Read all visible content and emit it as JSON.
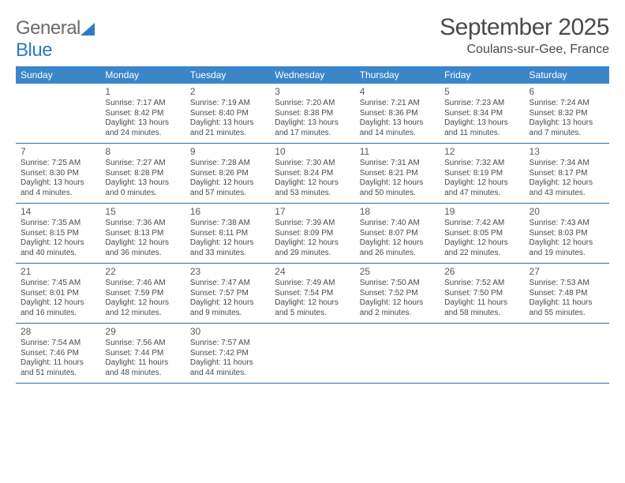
{
  "brand": {
    "text1": "General",
    "text2": "Blue"
  },
  "header": {
    "month_title": "September 2025",
    "location": "Coulans-sur-Gee, France"
  },
  "colors": {
    "header_bg": "#3a86c8",
    "rule": "#2f6fa8",
    "text": "#4a4a4a",
    "logo_gray": "#6b6b6b",
    "logo_blue": "#2f7abf"
  },
  "dow": [
    "Sunday",
    "Monday",
    "Tuesday",
    "Wednesday",
    "Thursday",
    "Friday",
    "Saturday"
  ],
  "weeks": [
    [
      null,
      {
        "d": "1",
        "sr": "Sunrise: 7:17 AM",
        "ss": "Sunset: 8:42 PM",
        "dl": "Daylight: 13 hours and 24 minutes."
      },
      {
        "d": "2",
        "sr": "Sunrise: 7:19 AM",
        "ss": "Sunset: 8:40 PM",
        "dl": "Daylight: 13 hours and 21 minutes."
      },
      {
        "d": "3",
        "sr": "Sunrise: 7:20 AM",
        "ss": "Sunset: 8:38 PM",
        "dl": "Daylight: 13 hours and 17 minutes."
      },
      {
        "d": "4",
        "sr": "Sunrise: 7:21 AM",
        "ss": "Sunset: 8:36 PM",
        "dl": "Daylight: 13 hours and 14 minutes."
      },
      {
        "d": "5",
        "sr": "Sunrise: 7:23 AM",
        "ss": "Sunset: 8:34 PM",
        "dl": "Daylight: 13 hours and 11 minutes."
      },
      {
        "d": "6",
        "sr": "Sunrise: 7:24 AM",
        "ss": "Sunset: 8:32 PM",
        "dl": "Daylight: 13 hours and 7 minutes."
      }
    ],
    [
      {
        "d": "7",
        "sr": "Sunrise: 7:25 AM",
        "ss": "Sunset: 8:30 PM",
        "dl": "Daylight: 13 hours and 4 minutes."
      },
      {
        "d": "8",
        "sr": "Sunrise: 7:27 AM",
        "ss": "Sunset: 8:28 PM",
        "dl": "Daylight: 13 hours and 0 minutes."
      },
      {
        "d": "9",
        "sr": "Sunrise: 7:28 AM",
        "ss": "Sunset: 8:26 PM",
        "dl": "Daylight: 12 hours and 57 minutes."
      },
      {
        "d": "10",
        "sr": "Sunrise: 7:30 AM",
        "ss": "Sunset: 8:24 PM",
        "dl": "Daylight: 12 hours and 53 minutes."
      },
      {
        "d": "11",
        "sr": "Sunrise: 7:31 AM",
        "ss": "Sunset: 8:21 PM",
        "dl": "Daylight: 12 hours and 50 minutes."
      },
      {
        "d": "12",
        "sr": "Sunrise: 7:32 AM",
        "ss": "Sunset: 8:19 PM",
        "dl": "Daylight: 12 hours and 47 minutes."
      },
      {
        "d": "13",
        "sr": "Sunrise: 7:34 AM",
        "ss": "Sunset: 8:17 PM",
        "dl": "Daylight: 12 hours and 43 minutes."
      }
    ],
    [
      {
        "d": "14",
        "sr": "Sunrise: 7:35 AM",
        "ss": "Sunset: 8:15 PM",
        "dl": "Daylight: 12 hours and 40 minutes."
      },
      {
        "d": "15",
        "sr": "Sunrise: 7:36 AM",
        "ss": "Sunset: 8:13 PM",
        "dl": "Daylight: 12 hours and 36 minutes."
      },
      {
        "d": "16",
        "sr": "Sunrise: 7:38 AM",
        "ss": "Sunset: 8:11 PM",
        "dl": "Daylight: 12 hours and 33 minutes."
      },
      {
        "d": "17",
        "sr": "Sunrise: 7:39 AM",
        "ss": "Sunset: 8:09 PM",
        "dl": "Daylight: 12 hours and 29 minutes."
      },
      {
        "d": "18",
        "sr": "Sunrise: 7:40 AM",
        "ss": "Sunset: 8:07 PM",
        "dl": "Daylight: 12 hours and 26 minutes."
      },
      {
        "d": "19",
        "sr": "Sunrise: 7:42 AM",
        "ss": "Sunset: 8:05 PM",
        "dl": "Daylight: 12 hours and 22 minutes."
      },
      {
        "d": "20",
        "sr": "Sunrise: 7:43 AM",
        "ss": "Sunset: 8:03 PM",
        "dl": "Daylight: 12 hours and 19 minutes."
      }
    ],
    [
      {
        "d": "21",
        "sr": "Sunrise: 7:45 AM",
        "ss": "Sunset: 8:01 PM",
        "dl": "Daylight: 12 hours and 16 minutes."
      },
      {
        "d": "22",
        "sr": "Sunrise: 7:46 AM",
        "ss": "Sunset: 7:59 PM",
        "dl": "Daylight: 12 hours and 12 minutes."
      },
      {
        "d": "23",
        "sr": "Sunrise: 7:47 AM",
        "ss": "Sunset: 7:57 PM",
        "dl": "Daylight: 12 hours and 9 minutes."
      },
      {
        "d": "24",
        "sr": "Sunrise: 7:49 AM",
        "ss": "Sunset: 7:54 PM",
        "dl": "Daylight: 12 hours and 5 minutes."
      },
      {
        "d": "25",
        "sr": "Sunrise: 7:50 AM",
        "ss": "Sunset: 7:52 PM",
        "dl": "Daylight: 12 hours and 2 minutes."
      },
      {
        "d": "26",
        "sr": "Sunrise: 7:52 AM",
        "ss": "Sunset: 7:50 PM",
        "dl": "Daylight: 11 hours and 58 minutes."
      },
      {
        "d": "27",
        "sr": "Sunrise: 7:53 AM",
        "ss": "Sunset: 7:48 PM",
        "dl": "Daylight: 11 hours and 55 minutes."
      }
    ],
    [
      {
        "d": "28",
        "sr": "Sunrise: 7:54 AM",
        "ss": "Sunset: 7:46 PM",
        "dl": "Daylight: 11 hours and 51 minutes."
      },
      {
        "d": "29",
        "sr": "Sunrise: 7:56 AM",
        "ss": "Sunset: 7:44 PM",
        "dl": "Daylight: 11 hours and 48 minutes."
      },
      {
        "d": "30",
        "sr": "Sunrise: 7:57 AM",
        "ss": "Sunset: 7:42 PM",
        "dl": "Daylight: 11 hours and 44 minutes."
      },
      null,
      null,
      null,
      null
    ]
  ]
}
